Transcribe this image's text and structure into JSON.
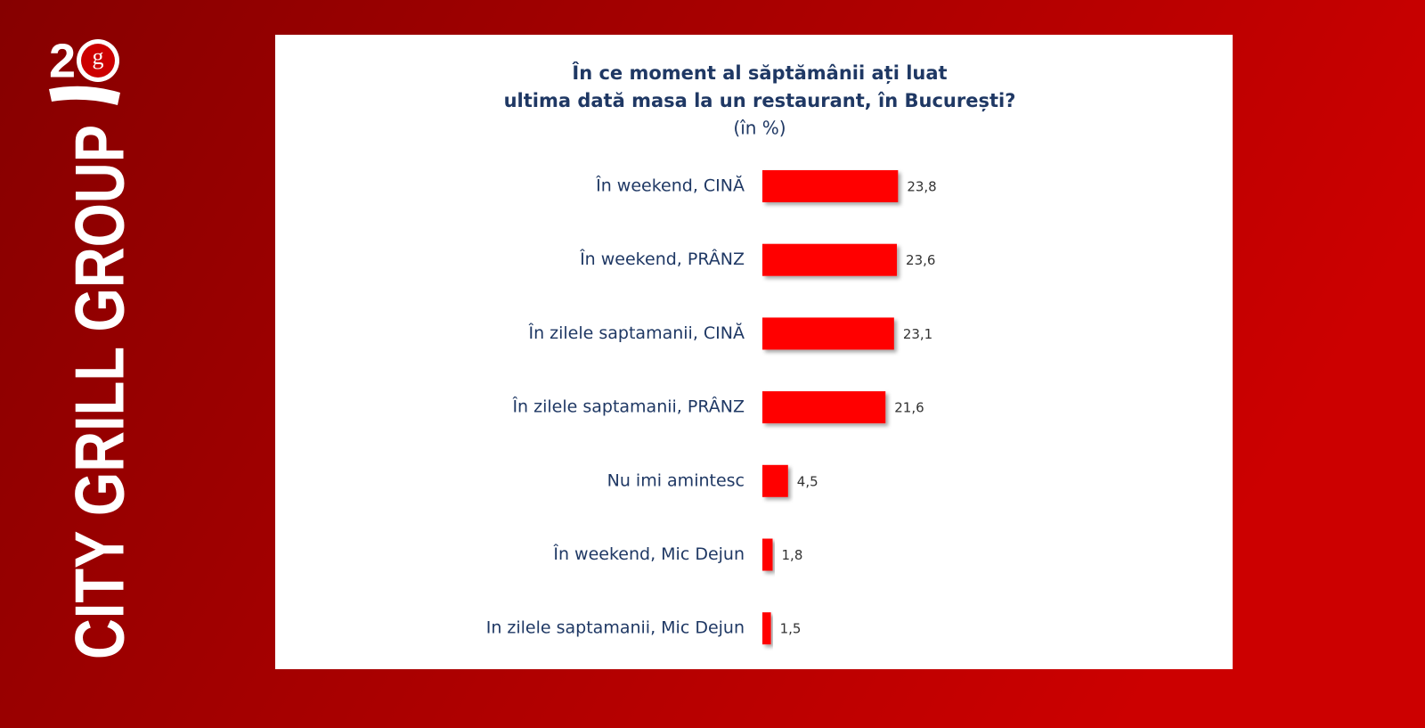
{
  "brand": "CITY GRILL GROUP",
  "chart_data": {
    "type": "hbar",
    "title": [
      "În ce moment al săptămânii ați luat",
      "ultima dată masa la un restaurant, în București?"
    ],
    "subtitle": "(în %)",
    "categories": [
      "În weekend, CINĂ",
      "În weekend, PRÂNZ",
      "În zilele saptamanii, CINĂ",
      "În zilele saptamanii, PRÂNZ",
      "Nu imi amintesc",
      "În weekend, Mic Dejun",
      "In zilele saptamanii, Mic Dejun"
    ],
    "values": [
      23.8,
      23.6,
      23.1,
      21.6,
      4.5,
      1.8,
      1.5
    ],
    "value_labels": [
      "23,8",
      "23,6",
      "23,1",
      "21,6",
      "4,5",
      "1,8",
      "1,5"
    ],
    "color": "#ff0000"
  }
}
